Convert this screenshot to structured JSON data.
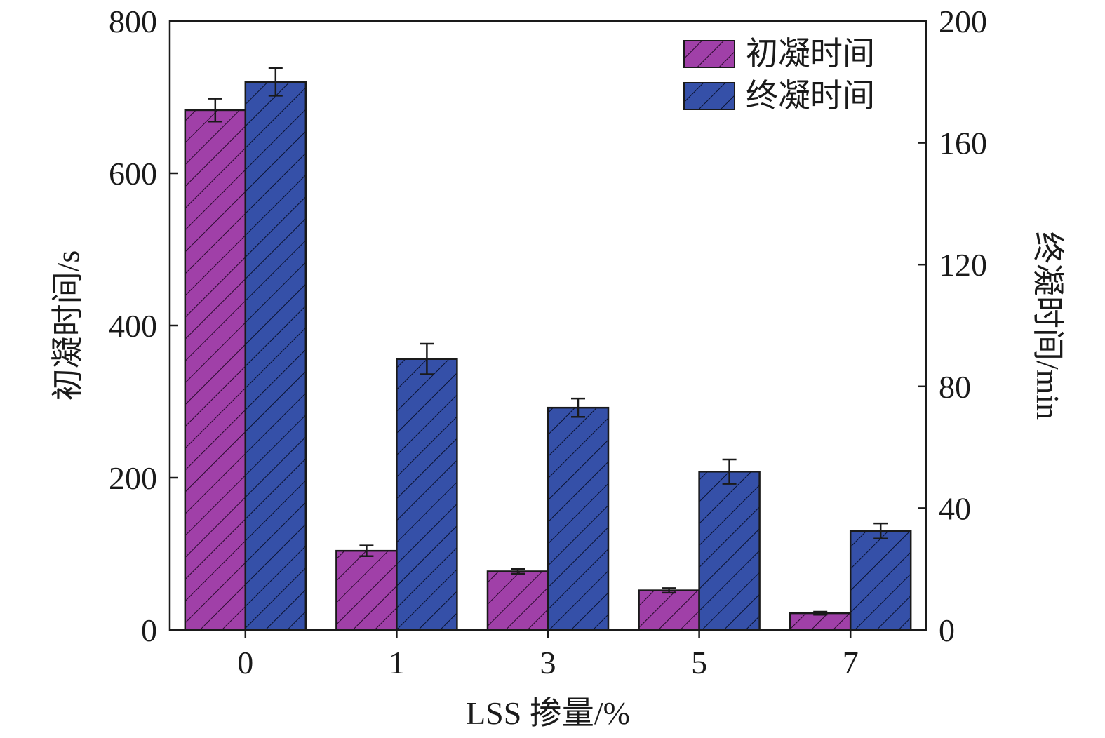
{
  "chart_data": {
    "type": "bar",
    "categories": [
      "0",
      "1",
      "3",
      "5",
      "7"
    ],
    "xlabel": "LSS 掺量/%",
    "ylabel_left": "初凝时间/s",
    "ylabel_right": "终凝时间/min",
    "ylim_left": [
      0,
      800
    ],
    "ylim_right": [
      0,
      200
    ],
    "yticks_left": [
      "0",
      "200",
      "400",
      "600",
      "800"
    ],
    "yticks_right": [
      "0",
      "40",
      "80",
      "120",
      "160",
      "200"
    ],
    "legend_position": "top-right",
    "grid": false,
    "series": [
      {
        "name": "初凝时间",
        "axis": "left",
        "unit": "s",
        "color": "#a040a8",
        "values": [
          683,
          104,
          77,
          52,
          22
        ],
        "errors": [
          15,
          7,
          3,
          3,
          2
        ]
      },
      {
        "name": "终凝时间",
        "axis": "right",
        "unit": "min",
        "color": "#3550a8",
        "values": [
          180,
          89,
          73,
          52,
          32.5
        ],
        "errors": [
          4.5,
          5,
          3,
          4,
          2.5
        ]
      }
    ]
  }
}
